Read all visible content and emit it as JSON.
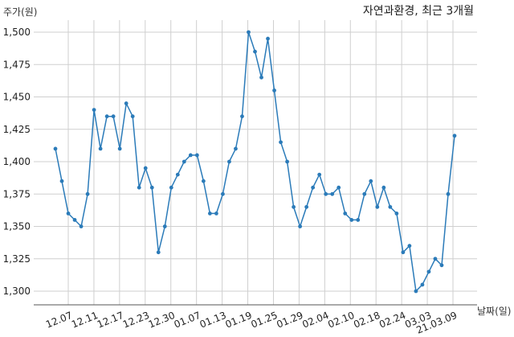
{
  "chart_data": {
    "type": "line",
    "title": "자연과환경, 최근 3개월",
    "ylabel": "주가(원)",
    "xlabel": "날짜(일)",
    "ylim": [
      1290,
      1510
    ],
    "yticks": [
      1300,
      1325,
      1350,
      1375,
      1400,
      1425,
      1450,
      1475,
      1500
    ],
    "ytick_labels": [
      "1,300",
      "1,325",
      "1,350",
      "1,375",
      "1,400",
      "1,425",
      "1,450",
      "1,475",
      "1,500"
    ],
    "xtick_labels": [
      "12.07",
      "12.11",
      "12.17",
      "12.23",
      "12.30",
      "01.07",
      "01.13",
      "01.19",
      "01.25",
      "01.29",
      "02.04",
      "02.10",
      "02.18",
      "02.24",
      "03.03",
      "21.03.09"
    ],
    "grid": true,
    "color": "#2b7bb9",
    "series": [
      {
        "values": [
          1410,
          1385,
          1360,
          1355,
          1350,
          1375,
          1440,
          1410,
          1435,
          1435,
          1410,
          1445,
          1435,
          1380,
          1395,
          1380,
          1330,
          1350,
          1380,
          1390,
          1400,
          1405,
          1405,
          1385,
          1360,
          1360,
          1375,
          1400,
          1410,
          1435,
          1500,
          1485,
          1465,
          1495,
          1455,
          1415,
          1400,
          1365,
          1350,
          1365,
          1380,
          1390,
          1375,
          1375,
          1380,
          1360,
          1355,
          1355,
          1375,
          1385,
          1365,
          1380,
          1365,
          1360,
          1330,
          1335,
          1300,
          1305,
          1315,
          1325,
          1320,
          1375,
          1420
        ]
      }
    ]
  }
}
